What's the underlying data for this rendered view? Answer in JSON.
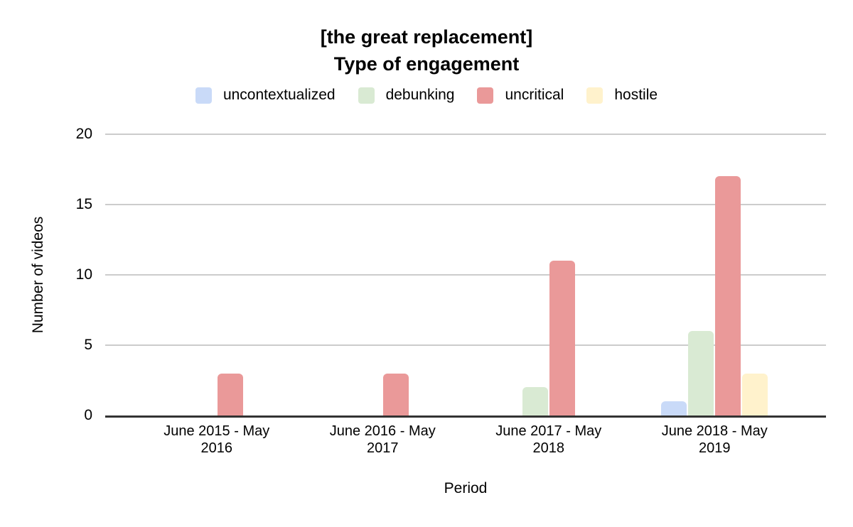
{
  "chart_data": {
    "type": "bar",
    "title_lines": [
      "[the great replacement]",
      "Type of engagement"
    ],
    "xlabel": "Period",
    "ylabel": "Number of videos",
    "ylim": [
      0,
      20
    ],
    "yticks": [
      0,
      5,
      10,
      15,
      20
    ],
    "grid": true,
    "legend_position": "top",
    "categories": [
      {
        "line1": "June 2015 - May",
        "line2": "2016"
      },
      {
        "line1": "June 2016 - May",
        "line2": "2017"
      },
      {
        "line1": "June 2017 - May",
        "line2": "2018"
      },
      {
        "line1": "June 2018 - May",
        "line2": "2019"
      }
    ],
    "series": [
      {
        "name": "uncontextualized",
        "color": "#c9daf8",
        "values": [
          0,
          0,
          0,
          1
        ]
      },
      {
        "name": "debunking",
        "color": "#d9ead3",
        "values": [
          0,
          0,
          2,
          6
        ]
      },
      {
        "name": "uncritical",
        "color": "#ea9999",
        "values": [
          3,
          3,
          11,
          17
        ]
      },
      {
        "name": "hostile",
        "color": "#fff2cc",
        "values": [
          0,
          0,
          0,
          3
        ]
      }
    ],
    "colors": {
      "gridline": "#cccccc",
      "baseline": "#333333",
      "text": "#000000",
      "background": "#ffffff"
    }
  }
}
